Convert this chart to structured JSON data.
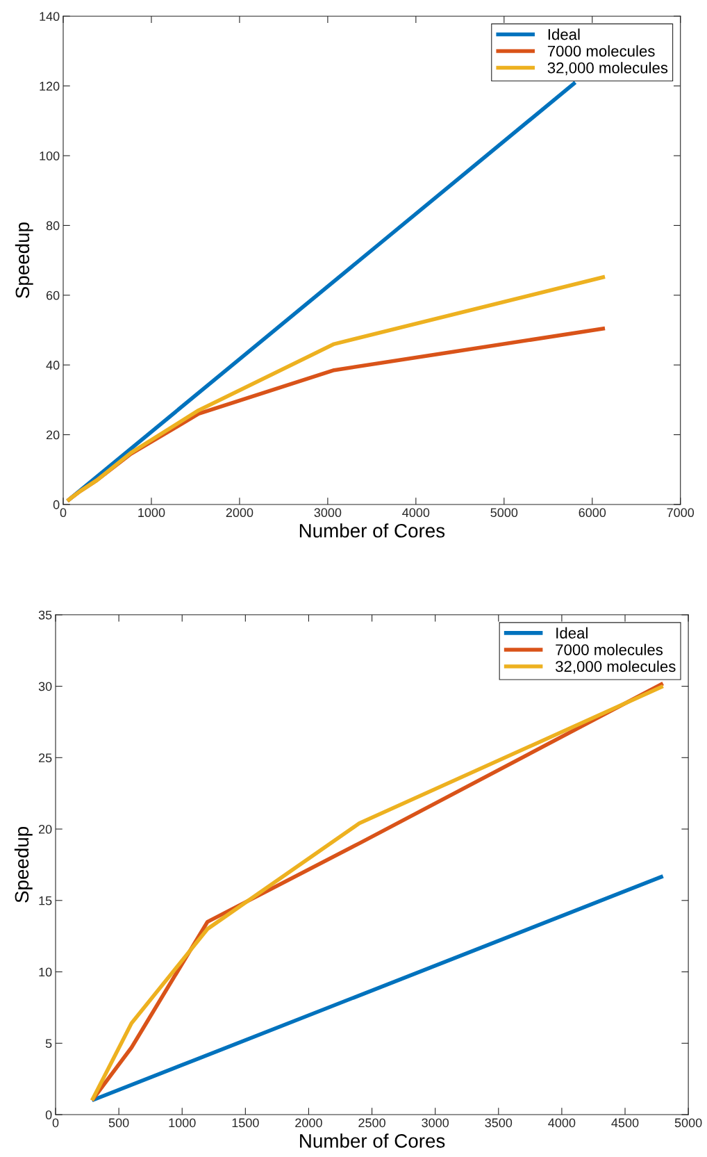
{
  "chart_data": [
    {
      "type": "line",
      "xlabel": "Number of Cores",
      "ylabel": "Speedup",
      "xlim": [
        0,
        7000
      ],
      "xticks": [
        0,
        1000,
        2000,
        3000,
        4000,
        5000,
        6000,
        7000
      ],
      "ylim": [
        0,
        140
      ],
      "yticks": [
        0,
        20,
        40,
        60,
        80,
        100,
        120,
        140
      ],
      "grid": false,
      "legend": "top right",
      "marker": "none",
      "line_style": "solid",
      "series": [
        {
          "name": "Ideal",
          "color": "#0072bd",
          "x": [
            48,
            5808
          ],
          "values": [
            1,
            121
          ]
        },
        {
          "name": "7000 molecules",
          "color": "#d95319",
          "x": [
            48,
            96,
            192,
            384,
            768,
            1536,
            3072,
            6144
          ],
          "values": [
            1,
            2,
            3.8,
            7,
            14.5,
            26,
            38.5,
            50.5
          ]
        },
        {
          "name": "32,000 molecules",
          "color": "#edb120",
          "x": [
            48,
            96,
            192,
            384,
            768,
            1536,
            3072,
            6144
          ],
          "values": [
            1,
            2,
            3.8,
            7,
            14.8,
            27,
            46,
            65.3
          ]
        }
      ]
    },
    {
      "type": "line",
      "xlabel": "Number of Cores",
      "ylabel": "Speedup",
      "xlim": [
        0,
        5000
      ],
      "xticks": [
        0,
        500,
        1000,
        1500,
        2000,
        2500,
        3000,
        3500,
        4000,
        4500,
        5000
      ],
      "ylim": [
        0,
        35
      ],
      "yticks": [
        0,
        5,
        10,
        15,
        20,
        25,
        30,
        35
      ],
      "grid": false,
      "legend": "top right",
      "marker": "none",
      "line_style": "solid",
      "series": [
        {
          "name": "Ideal",
          "color": "#0072bd",
          "x": [
            288,
            4800
          ],
          "values": [
            1,
            16.7
          ]
        },
        {
          "name": "7000 molecules",
          "color": "#d95319",
          "x": [
            288,
            600,
            1200,
            2400,
            4800
          ],
          "values": [
            1,
            4.7,
            13.5,
            19,
            30.2
          ]
        },
        {
          "name": "32,000 molecules",
          "color": "#edb120",
          "x": [
            288,
            600,
            1200,
            2400,
            4800
          ],
          "values": [
            1,
            6.4,
            13,
            20.4,
            30
          ]
        }
      ]
    }
  ]
}
